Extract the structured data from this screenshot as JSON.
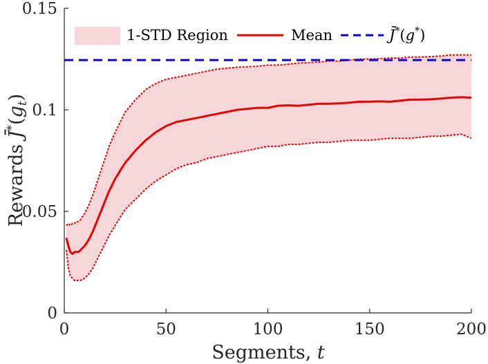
{
  "chart_data": {
    "type": "line",
    "title": "",
    "xlabel": "Segments, ",
    "xlabel_var": "t",
    "ylabel": "Rewards ",
    "ylabel_func": "J̄",
    "ylabel_sup": "*",
    "ylabel_arg_open": "(",
    "ylabel_arg_var": "g",
    "ylabel_arg_sub": "t",
    "ylabel_arg_close": ")",
    "xlim": [
      0,
      200
    ],
    "ylim": [
      0,
      0.15
    ],
    "xticks": [
      0,
      50,
      100,
      150,
      200
    ],
    "yticks": [
      0,
      0.05,
      0.1,
      0.15
    ],
    "xtick_labels": [
      "0",
      "50",
      "100",
      "150",
      "200"
    ],
    "ytick_labels": [
      "0",
      "0.05",
      "0.1",
      "0.15"
    ],
    "grid": false,
    "legend_position": "top",
    "legend": {
      "band_label": "1-STD Region",
      "mean_label": "Mean",
      "ref_label_func": "J̄",
      "ref_label_sup": "*",
      "ref_label_open": "(",
      "ref_label_var": "g",
      "ref_label_sup2": "*",
      "ref_label_close": ")"
    },
    "colors": {
      "mean": "#e60000",
      "band_fill": "#f7d6d9",
      "band_edge": "#e60000",
      "reference": "#0000e6"
    },
    "reference_value": 0.1245,
    "x": [
      1,
      2,
      3,
      4,
      5,
      6,
      7,
      8,
      10,
      12,
      14,
      16,
      18,
      20,
      22,
      25,
      28,
      30,
      35,
      40,
      45,
      50,
      55,
      60,
      65,
      70,
      75,
      80,
      85,
      90,
      95,
      100,
      105,
      110,
      115,
      120,
      125,
      130,
      135,
      140,
      145,
      150,
      155,
      160,
      165,
      170,
      175,
      180,
      185,
      190,
      195,
      200
    ],
    "series": [
      {
        "name": "Mean",
        "values": [
          0.037,
          0.033,
          0.03,
          0.029,
          0.03,
          0.03,
          0.03,
          0.031,
          0.033,
          0.036,
          0.04,
          0.045,
          0.05,
          0.055,
          0.06,
          0.066,
          0.071,
          0.074,
          0.08,
          0.085,
          0.089,
          0.092,
          0.094,
          0.095,
          0.096,
          0.097,
          0.098,
          0.099,
          0.1,
          0.1005,
          0.101,
          0.101,
          0.102,
          0.1022,
          0.102,
          0.1025,
          0.103,
          0.103,
          0.1032,
          0.1035,
          0.104,
          0.104,
          0.1042,
          0.104,
          0.1045,
          0.105,
          0.105,
          0.1052,
          0.1055,
          0.106,
          0.1062,
          0.106
        ]
      },
      {
        "name": "1-STD Upper",
        "values": [
          0.043,
          0.044,
          0.043,
          0.044,
          0.044,
          0.045,
          0.045,
          0.046,
          0.049,
          0.053,
          0.058,
          0.064,
          0.07,
          0.076,
          0.082,
          0.089,
          0.095,
          0.099,
          0.105,
          0.11,
          0.113,
          0.115,
          0.116,
          0.117,
          0.118,
          0.119,
          0.12,
          0.1205,
          0.121,
          0.1212,
          0.1215,
          0.122,
          0.122,
          0.1225,
          0.123,
          0.1232,
          0.1235,
          0.124,
          0.124,
          0.1245,
          0.125,
          0.125,
          0.1252,
          0.1255,
          0.1255,
          0.126,
          0.126,
          0.1262,
          0.1265,
          0.127,
          0.127,
          0.127
        ]
      },
      {
        "name": "1-STD Lower",
        "values": [
          0.031,
          0.022,
          0.018,
          0.017,
          0.016,
          0.016,
          0.016,
          0.016,
          0.017,
          0.019,
          0.022,
          0.026,
          0.03,
          0.034,
          0.038,
          0.043,
          0.048,
          0.051,
          0.056,
          0.061,
          0.065,
          0.068,
          0.071,
          0.073,
          0.074,
          0.076,
          0.077,
          0.078,
          0.079,
          0.08,
          0.081,
          0.082,
          0.082,
          0.083,
          0.083,
          0.0835,
          0.084,
          0.084,
          0.0845,
          0.085,
          0.085,
          0.085,
          0.0855,
          0.086,
          0.086,
          0.086,
          0.0865,
          0.087,
          0.087,
          0.0875,
          0.088,
          0.086
        ]
      }
    ]
  }
}
